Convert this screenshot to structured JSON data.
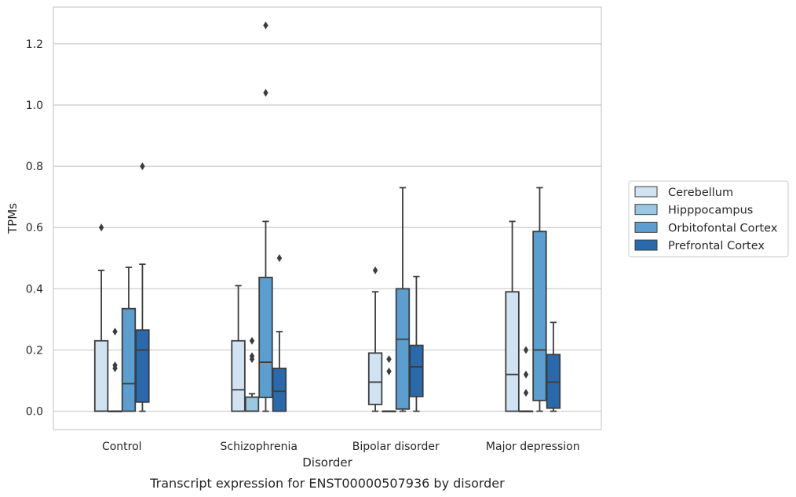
{
  "caption": "Transcript expression for ENST00000507936 by disorder",
  "chart_data": {
    "type": "box",
    "title": "",
    "xlabel": "Disorder",
    "ylabel": "TPMs",
    "ylim": [
      -0.06,
      1.32
    ],
    "yticks": [
      0.0,
      0.2,
      0.4,
      0.6,
      0.8,
      1.0,
      1.2
    ],
    "yticklabels": [
      "0.0",
      "0.2",
      "0.4",
      "0.6",
      "0.8",
      "1.0",
      "1.2"
    ],
    "grid": "horizontal",
    "legend_position": "right",
    "categories": [
      "Control",
      "Schizophrenia",
      "Bipolar disorder",
      "Major depression"
    ],
    "series": [
      {
        "name": "Cerebellum",
        "color": "#d1e2f3",
        "boxes": [
          {
            "whislo": 0.0,
            "q1": 0.0,
            "med": 0.0,
            "q3": 0.23,
            "whishi": 0.46,
            "fliers": [
              0.6
            ]
          },
          {
            "whislo": 0.0,
            "q1": 0.0,
            "med": 0.07,
            "q3": 0.23,
            "whishi": 0.41,
            "fliers": []
          },
          {
            "whislo": 0.0,
            "q1": 0.022,
            "med": 0.095,
            "q3": 0.19,
            "whishi": 0.39,
            "fliers": [
              0.46
            ]
          },
          {
            "whislo": 0.0,
            "q1": 0.0,
            "med": 0.12,
            "q3": 0.39,
            "whishi": 0.62,
            "fliers": []
          }
        ]
      },
      {
        "name": "Hipppocampus",
        "color": "#9ac8e0",
        "boxes": [
          {
            "whislo": 0.0,
            "q1": 0.0,
            "med": 0.0,
            "q3": 0.0,
            "whishi": 0.0,
            "fliers": [
              0.14,
              0.15,
              0.26
            ]
          },
          {
            "whislo": 0.0,
            "q1": 0.0,
            "med": 0.0,
            "q3": 0.046,
            "whishi": 0.057,
            "fliers": [
              0.17,
              0.18,
              0.23
            ]
          },
          {
            "whislo": 0.0,
            "q1": 0.0,
            "med": 0.0,
            "q3": 0.0,
            "whishi": 0.0,
            "fliers": [
              0.13,
              0.17
            ]
          },
          {
            "whislo": 0.0,
            "q1": 0.0,
            "med": 0.0,
            "q3": 0.0,
            "whishi": 0.0,
            "fliers": [
              0.06,
              0.12,
              0.2
            ]
          }
        ]
      },
      {
        "name": "Orbitofontal Cortex",
        "color": "#5a9fcf",
        "boxes": [
          {
            "whislo": 0.0,
            "q1": 0.0,
            "med": 0.09,
            "q3": 0.335,
            "whishi": 0.47,
            "fliers": []
          },
          {
            "whislo": 0.0,
            "q1": 0.045,
            "med": 0.16,
            "q3": 0.437,
            "whishi": 0.62,
            "fliers": [
              1.04,
              1.26
            ]
          },
          {
            "whislo": 0.0,
            "q1": 0.007,
            "med": 0.235,
            "q3": 0.4,
            "whishi": 0.73,
            "fliers": []
          },
          {
            "whislo": 0.0,
            "q1": 0.035,
            "med": 0.2,
            "q3": 0.587,
            "whishi": 0.73,
            "fliers": []
          }
        ]
      },
      {
        "name": "Prefrontal Cortex",
        "color": "#2a6aac",
        "boxes": [
          {
            "whislo": 0.0,
            "q1": 0.03,
            "med": 0.2,
            "q3": 0.265,
            "whishi": 0.48,
            "fliers": [
              0.8
            ]
          },
          {
            "whislo": 0.0,
            "q1": 0.0,
            "med": 0.065,
            "q3": 0.14,
            "whishi": 0.26,
            "fliers": [
              0.5
            ]
          },
          {
            "whislo": 0.0,
            "q1": 0.048,
            "med": 0.145,
            "q3": 0.215,
            "whishi": 0.44,
            "fliers": []
          },
          {
            "whislo": 0.0,
            "q1": 0.01,
            "med": 0.095,
            "q3": 0.185,
            "whishi": 0.29,
            "fliers": []
          }
        ]
      }
    ]
  }
}
